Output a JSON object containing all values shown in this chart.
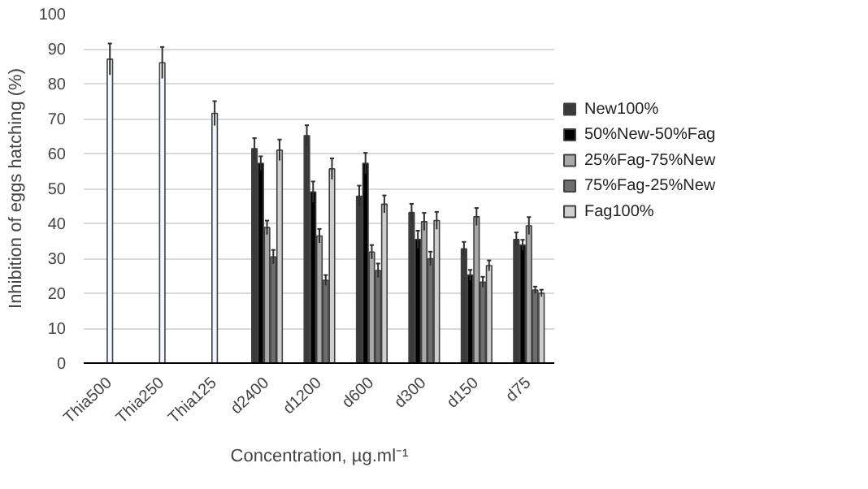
{
  "chart_data": {
    "type": "bar",
    "ylabel": "Inhibition of eggs hatching (%)",
    "xlabel": "Concentration, µg.ml⁻¹",
    "categories": [
      "Thia500",
      "Thia250",
      "Thia125",
      "d2400",
      "d1200",
      "d600",
      "d300",
      "d150",
      "d75"
    ],
    "ylim": [
      0,
      100
    ],
    "yticks": [
      0,
      10,
      20,
      30,
      40,
      50,
      60,
      70,
      80,
      90,
      100
    ],
    "grid": "y",
    "legend": "right",
    "series": [
      {
        "color": "#f4f8fc",
        "values": [
          87,
          86,
          71.5,
          null,
          null,
          null,
          null,
          null,
          null
        ],
        "errors": [
          4.5,
          4.5,
          3.5,
          null,
          null,
          null,
          null,
          null,
          null
        ]
      },
      {
        "name": "New100%",
        "color": "#3a3a3a",
        "values": [
          null,
          null,
          null,
          61.4,
          65.1,
          47.8,
          43.1,
          32.7,
          35.4
        ],
        "errors": [
          null,
          null,
          null,
          3,
          3,
          3,
          2.5,
          2,
          2
        ]
      },
      {
        "name": "50%New-50%Fag",
        "color": "#000000",
        "values": [
          null,
          null,
          null,
          57.2,
          49,
          57.2,
          35.4,
          25.2,
          33.8
        ],
        "errors": [
          null,
          null,
          null,
          2,
          3,
          3,
          2.5,
          1.5,
          1.5
        ]
      },
      {
        "name": "25%Fag-75%New",
        "color": "#a8a8a8",
        "values": [
          null,
          null,
          null,
          38.8,
          36.4,
          31.8,
          40.5,
          41.9,
          39.3
        ],
        "errors": [
          null,
          null,
          null,
          2,
          2,
          2,
          2.5,
          2.5,
          2.5
        ]
      },
      {
        "name": "75%Fag-25%New",
        "color": "#6e6e6e",
        "values": [
          null,
          null,
          null,
          30.4,
          23.7,
          26.5,
          29.9,
          23.2,
          20.9
        ],
        "errors": [
          null,
          null,
          null,
          2,
          1.5,
          2,
          2,
          1.5,
          1
        ]
      },
      {
        "name": "Fag100%",
        "color": "#cfcfcf",
        "values": [
          null,
          null,
          null,
          61,
          55.6,
          45.5,
          40.8,
          27.9,
          20
        ],
        "errors": [
          null,
          null,
          null,
          3,
          3,
          2.5,
          2.5,
          1.5,
          1
        ]
      }
    ]
  }
}
